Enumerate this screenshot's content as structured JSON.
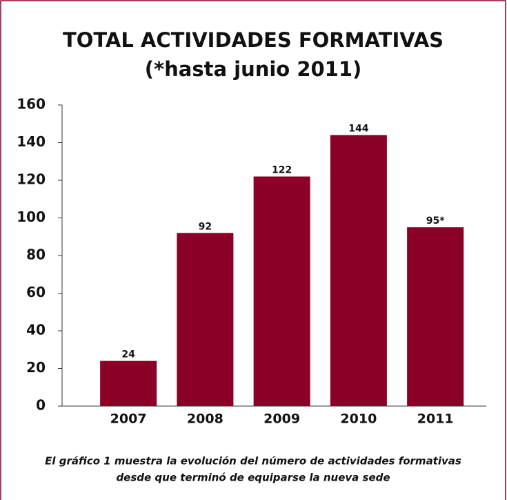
{
  "chart_data": {
    "type": "bar",
    "title": "TOTAL ACTIVIDADES FORMATIVAS",
    "subtitle": "(*hasta junio 2011)",
    "categories": [
      "2007",
      "2008",
      "2009",
      "2010",
      "2011"
    ],
    "values": [
      24,
      92,
      122,
      144,
      95
    ],
    "value_labels": [
      "24",
      "92",
      "122",
      "144",
      "95*"
    ],
    "color": "#8b0026",
    "ylim": [
      0,
      160
    ],
    "yticks": [
      0,
      20,
      40,
      60,
      80,
      100,
      120,
      140,
      160
    ],
    "caption": [
      "El gráfico 1 muestra la evolución del número de actividades formativas",
      "desde que terminó de equiparse la nueva sede"
    ]
  }
}
